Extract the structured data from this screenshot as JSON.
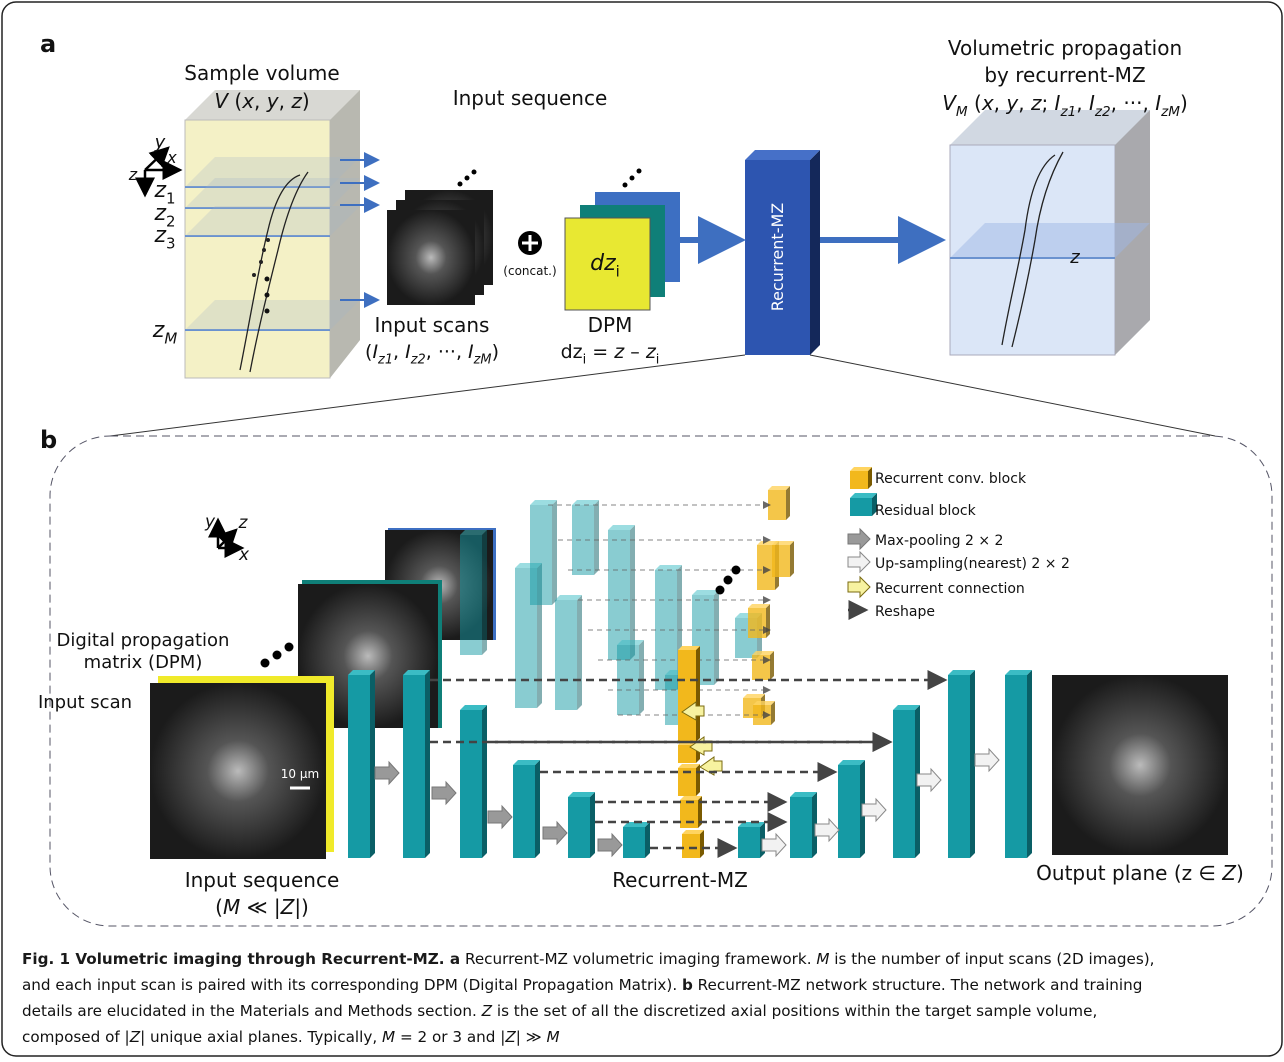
{
  "panel_a": {
    "label": "a",
    "sample_volume_title": "Sample volume",
    "sample_volume_formula": [
      {
        "text": "V",
        "italic": true
      },
      {
        "text": " ("
      },
      {
        "text": "x",
        "italic": true
      },
      {
        "text": ", "
      },
      {
        "text": "y",
        "italic": true
      },
      {
        "text": ", "
      },
      {
        "text": "z",
        "italic": true
      },
      {
        "text": ")"
      }
    ],
    "axes": {
      "x": "x",
      "y": "y",
      "z": "z"
    },
    "z_labels": [
      [
        {
          "text": "z",
          "italic": true
        },
        {
          "text": "1",
          "sub": true
        }
      ],
      [
        {
          "text": "z",
          "italic": true
        },
        {
          "text": "2",
          "sub": true
        }
      ],
      [
        {
          "text": "z",
          "italic": true
        },
        {
          "text": "3",
          "sub": true
        }
      ],
      [
        {
          "text": "z",
          "italic": true
        },
        {
          "text": "M",
          "sub": true,
          "italic": true
        }
      ]
    ],
    "input_sequence": "Input sequence",
    "concat": "(concat.)",
    "dpm_square_label": [
      {
        "text": "dz",
        "italic": true
      },
      {
        "text": "i",
        "sub": true
      }
    ],
    "input_scans_title": "Input scans",
    "input_scans_formula": [
      {
        "text": "("
      },
      {
        "text": "I",
        "italic": true
      },
      {
        "text": "z1",
        "sub": true,
        "italic": true
      },
      {
        "text": ", "
      },
      {
        "text": "I",
        "italic": true
      },
      {
        "text": "z2",
        "sub": true,
        "italic": true
      },
      {
        "text": ", ···, "
      },
      {
        "text": "I",
        "italic": true
      },
      {
        "text": "zM",
        "sub": true,
        "italic": true
      },
      {
        "text": ")"
      }
    ],
    "dpm_title": "DPM",
    "dpm_formula": [
      {
        "text": "dz"
      },
      {
        "text": "i",
        "sub": true
      },
      {
        "text": " = "
      },
      {
        "text": "z",
        "italic": true
      },
      {
        "text": " – "
      },
      {
        "text": "z",
        "italic": true
      },
      {
        "text": "i",
        "sub": true
      }
    ],
    "network_block": "Recurrent-MZ",
    "output_title_1": "Volumetric propagation",
    "output_title_2": "by recurrent-MZ",
    "output_formula": [
      {
        "text": "V",
        "italic": true
      },
      {
        "text": "M",
        "sub": true,
        "italic": true
      },
      {
        "text": " ("
      },
      {
        "text": "x",
        "italic": true
      },
      {
        "text": ", "
      },
      {
        "text": "y",
        "italic": true
      },
      {
        "text": ", "
      },
      {
        "text": "z",
        "italic": true
      },
      {
        "text": "; "
      },
      {
        "text": "I",
        "italic": true
      },
      {
        "text": "z1",
        "sub": true,
        "italic": true
      },
      {
        "text": ", "
      },
      {
        "text": "I",
        "italic": true
      },
      {
        "text": "z2",
        "sub": true,
        "italic": true
      },
      {
        "text": ", ···, "
      },
      {
        "text": "I",
        "italic": true
      },
      {
        "text": "zM",
        "sub": true,
        "italic": true
      },
      {
        "text": ")"
      }
    ],
    "output_z": "z"
  },
  "panel_b": {
    "label": "b",
    "axes": {
      "x": "x",
      "y": "y",
      "z": "z"
    },
    "legend": [
      "Recurrent conv. block",
      "Residual block",
      "Max-pooling 2 × 2",
      "Up-sampling(nearest) 2 × 2",
      "Recurrent connection",
      "Reshape"
    ],
    "dpm_label_1": "Digital propagation",
    "dpm_label_2": "matrix (DPM)",
    "input_scan": "Input scan",
    "scale_bar": "10 µm",
    "input_sequence": "Input sequence",
    "input_sequence_formula": [
      {
        "text": "("
      },
      {
        "text": "M",
        "italic": true
      },
      {
        "text": " ≪ |"
      },
      {
        "text": "Z",
        "italic": true
      },
      {
        "text": "|)"
      }
    ],
    "network": "Recurrent-MZ",
    "output_plane": [
      {
        "text": "Output plane (z ∈ "
      },
      {
        "text": "Z",
        "italic": true
      },
      {
        "text": ")"
      }
    ]
  },
  "caption": [
    [
      {
        "text": "Fig. 1 Volumetric imaging through Recurrent-MZ.",
        "bold": true
      },
      {
        "text": " a",
        "bold": true
      },
      {
        "text": " Recurrent-MZ volumetric imaging framework. "
      },
      {
        "text": "M",
        "italic": true
      },
      {
        "text": " is the number of input scans (2D images),"
      }
    ],
    [
      {
        "text": "and each input scan is paired with its corresponding DPM (Digital Propagation Matrix). "
      },
      {
        "text": "b",
        "bold": true
      },
      {
        "text": " Recurrent-MZ network structure. The network and training"
      }
    ],
    [
      {
        "text": "details are elucidated in the Materials and Methods section. "
      },
      {
        "text": "Z",
        "italic": true
      },
      {
        "text": " is the set of all the discretized axial positions within the target sample volume,"
      }
    ],
    [
      {
        "text": "composed of |"
      },
      {
        "text": "Z",
        "italic": true
      },
      {
        "text": "| unique axial planes. Typically, "
      },
      {
        "text": "M",
        "italic": true
      },
      {
        "text": " = 2 or 3 and |"
      },
      {
        "text": "Z",
        "italic": true
      },
      {
        "text": "| ≫ "
      },
      {
        "text": "M",
        "italic": true
      }
    ]
  ]
}
